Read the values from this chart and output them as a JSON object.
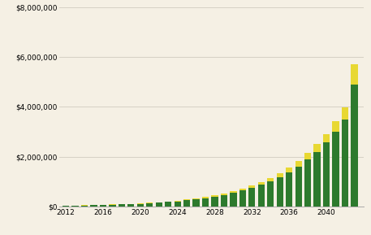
{
  "years": [
    2012,
    2013,
    2014,
    2015,
    2016,
    2017,
    2018,
    2019,
    2020,
    2021,
    2022,
    2023,
    2024,
    2025,
    2026,
    2027,
    2028,
    2029,
    2030,
    2031,
    2032,
    2033,
    2034,
    2035,
    2036,
    2037,
    2038,
    2039,
    2040,
    2041,
    2042,
    2043
  ],
  "green_values": [
    48000,
    52000,
    58000,
    65000,
    73000,
    83000,
    95000,
    108000,
    123000,
    142000,
    163000,
    190000,
    220000,
    258000,
    302000,
    352000,
    412000,
    480000,
    560000,
    655000,
    760000,
    880000,
    1020000,
    1190000,
    1390000,
    1620000,
    1890000,
    2200000,
    2570000,
    3000000,
    3500000,
    4900000
  ],
  "yellow_values": [
    5000,
    6000,
    6500,
    7500,
    8500,
    9500,
    11000,
    13000,
    15000,
    17000,
    20000,
    24000,
    28000,
    33000,
    39000,
    46000,
    54000,
    64000,
    75000,
    88000,
    103000,
    120000,
    140000,
    163000,
    190000,
    222000,
    260000,
    303000,
    355000,
    415000,
    485000,
    800000
  ],
  "bar_color_green": "#2d7a2d",
  "bar_color_yellow": "#e8d832",
  "background_color": "#f5f0e4",
  "grid_color": "#d0ccbf",
  "ylim": [
    0,
    8000000
  ],
  "yticks": [
    0,
    2000000,
    4000000,
    6000000,
    8000000
  ],
  "ytick_labels": [
    "$0",
    "$2,000,000",
    "$4,000,000",
    "$6,000,000",
    "$8,000,000"
  ],
  "xtick_labels": [
    "2012",
    "2016",
    "2020",
    "2024",
    "2028",
    "2032",
    "2036",
    "2040"
  ],
  "xtick_positions": [
    2012,
    2016,
    2020,
    2024,
    2028,
    2032,
    2036,
    2040
  ]
}
